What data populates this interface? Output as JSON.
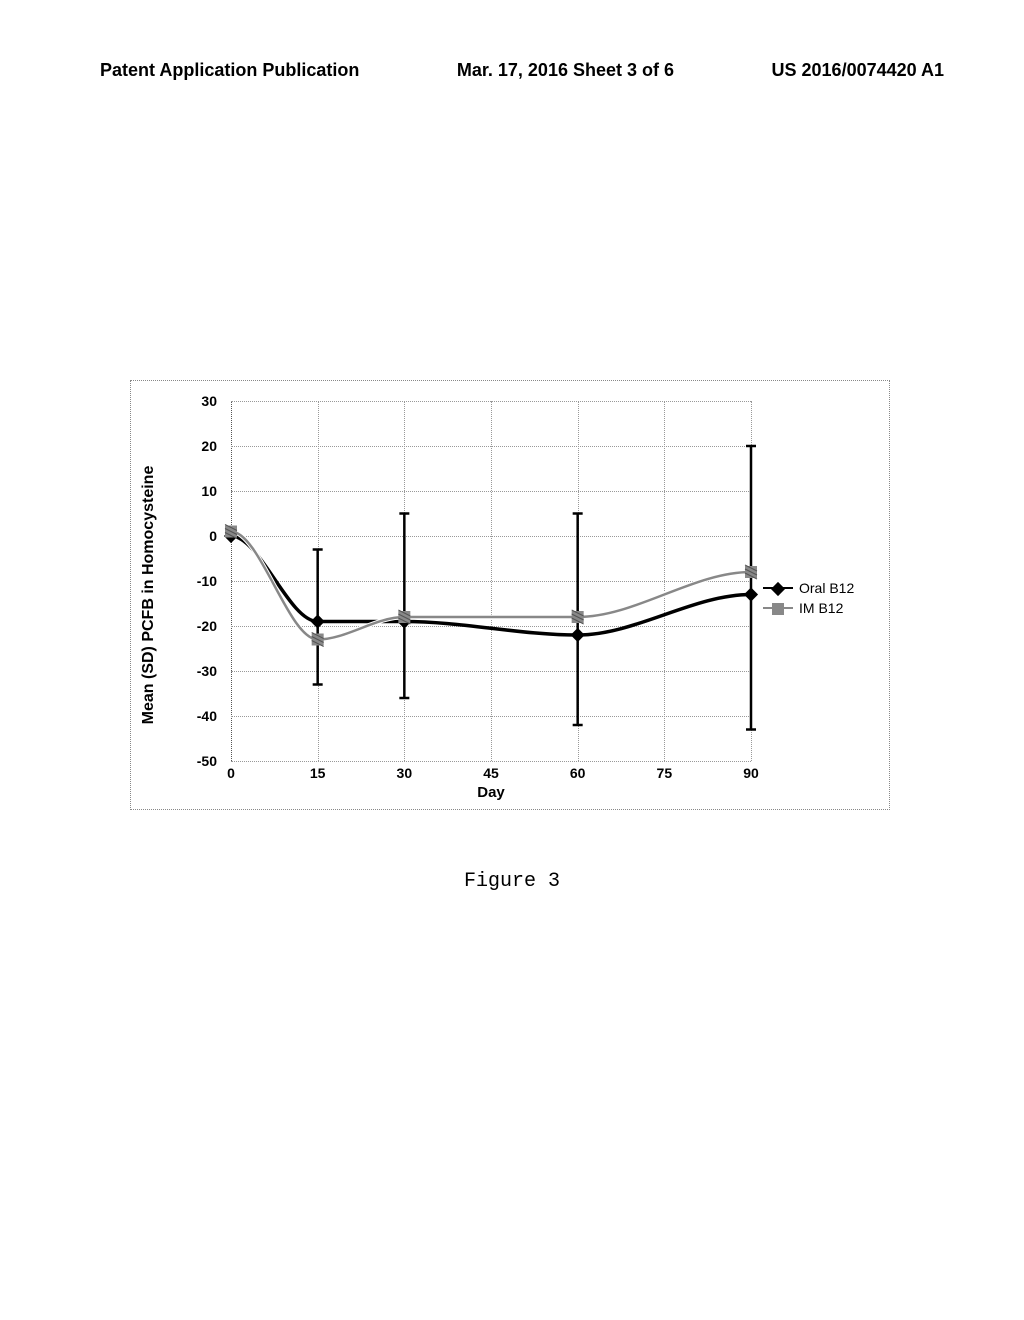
{
  "header": {
    "left": "Patent Application Publication",
    "center": "Mar. 17, 2016  Sheet 3 of 6",
    "right": "US 2016/0074420 A1"
  },
  "chart": {
    "type": "line",
    "ylabel": "Mean (SD) PCFB in Homocysteine",
    "xlabel": "Day",
    "ylim": [
      -50,
      30
    ],
    "ytick_step": 10,
    "xlim": [
      0,
      90
    ],
    "xtick_step": 15,
    "x_values": [
      0,
      15,
      30,
      60,
      90
    ],
    "xticks": [
      0,
      15,
      30,
      45,
      60,
      75,
      90
    ],
    "yticks": [
      -50,
      -40,
      -30,
      -20,
      -10,
      0,
      10,
      20,
      30
    ],
    "series": [
      {
        "name": "Oral B12",
        "color": "#000000",
        "marker": "diamond",
        "line_width": 3.5,
        "y": [
          0,
          -19,
          -19,
          -22,
          -13
        ],
        "err_lo": [
          null,
          -33,
          -36,
          -42,
          -43
        ],
        "err_hi": [
          null,
          -3,
          5,
          5,
          20
        ]
      },
      {
        "name": "IM B12",
        "color": "#888888",
        "marker": "hatch",
        "line_width": 2.5,
        "y": [
          1,
          -23,
          -18,
          -18,
          -8
        ],
        "err_lo": [
          null,
          null,
          null,
          null,
          null
        ],
        "err_hi": [
          null,
          null,
          null,
          null,
          null
        ]
      }
    ],
    "grid_color": "#999999",
    "background_color": "#ffffff",
    "legend": {
      "items": [
        "Oral B12",
        "IM B12"
      ]
    }
  },
  "caption": "Figure 3"
}
